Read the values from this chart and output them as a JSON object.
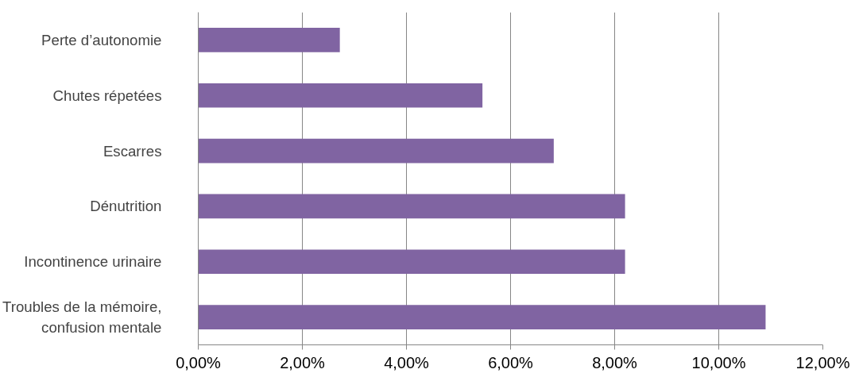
{
  "chart_data": {
    "type": "bar",
    "orientation": "horizontal",
    "categories": [
      "Perte d’autonomie",
      "Chutes répetées",
      "Escarres",
      "Dénutrition",
      "Incontinence urinaire",
      "Troubles de la mémoire,\nconfusion mentale"
    ],
    "values": [
      2.72,
      5.46,
      6.83,
      8.2,
      8.2,
      10.9
    ],
    "color": "#8064a2",
    "xlim": [
      0,
      12
    ],
    "xticks": [
      {
        "value": 0,
        "label": "0,00%"
      },
      {
        "value": 2,
        "label": "2,00%"
      },
      {
        "value": 4,
        "label": "4,00%"
      },
      {
        "value": 6,
        "label": "6,00%"
      },
      {
        "value": 8,
        "label": "8,00%"
      },
      {
        "value": 10,
        "label": "10,00%"
      },
      {
        "value": 12,
        "label": "12,00%"
      }
    ],
    "grid": "x"
  }
}
